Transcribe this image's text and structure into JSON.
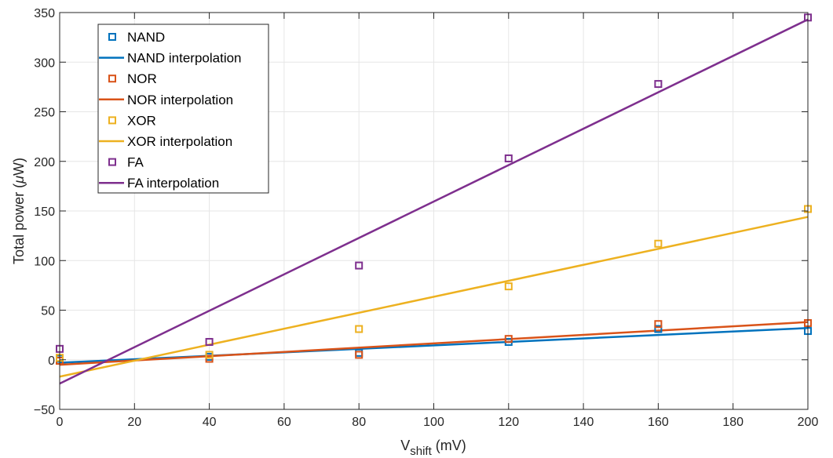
{
  "chart_data": {
    "type": "scatter",
    "xlabel": "V",
    "xlabel_sub": "shift",
    "xlabel_unit": " (mV)",
    "ylabel": "Total power (",
    "ylabel_mu": "μ",
    "ylabel_unit": "W)",
    "xlim": [
      0,
      200
    ],
    "ylim": [
      -50,
      350
    ],
    "xticks": [
      0,
      20,
      40,
      60,
      80,
      100,
      120,
      140,
      160,
      180,
      200
    ],
    "yticks": [
      -50,
      0,
      50,
      100,
      150,
      200,
      250,
      300,
      350
    ],
    "xtick_labels": [
      "0",
      "20",
      "40",
      "60",
      "80",
      "100",
      "120",
      "140",
      "160",
      "180",
      "200"
    ],
    "ytick_labels": [
      "−50",
      "0",
      "50",
      "100",
      "150",
      "200",
      "250",
      "300",
      "350"
    ],
    "grid": true,
    "legend_position": "top-left",
    "x": [
      0,
      40,
      80,
      120,
      160,
      200
    ],
    "series": [
      {
        "name": "NAND",
        "color": "#0072BD",
        "values": [
          1,
          3,
          7,
          18,
          31,
          29
        ]
      },
      {
        "name": "NOR",
        "color": "#D95319",
        "values": [
          -1,
          1,
          5,
          21,
          36,
          37
        ]
      },
      {
        "name": "XOR",
        "color": "#EDB120",
        "values": [
          2,
          5,
          31,
          74,
          117,
          152
        ]
      },
      {
        "name": "FA",
        "color": "#7E2F8E",
        "values": [
          11,
          18,
          95,
          203,
          278,
          345
        ]
      }
    ],
    "interpolations": [
      {
        "name": "NAND interpolation",
        "color": "#0072BD",
        "y_start": -3,
        "y_end": 32
      },
      {
        "name": "NOR interpolation",
        "color": "#D95319",
        "y_start": -5,
        "y_end": 38
      },
      {
        "name": "XOR interpolation",
        "color": "#EDB120",
        "y_start": -17,
        "y_end": 144
      },
      {
        "name": "FA interpolation",
        "color": "#7E2F8E",
        "y_start": -24,
        "y_end": 343
      }
    ],
    "legend": [
      {
        "label": "NAND",
        "kind": "marker",
        "color": "#0072BD"
      },
      {
        "label": "NAND interpolation",
        "kind": "line",
        "color": "#0072BD"
      },
      {
        "label": "NOR",
        "kind": "marker",
        "color": "#D95319"
      },
      {
        "label": "NOR interpolation",
        "kind": "line",
        "color": "#D95319"
      },
      {
        "label": "XOR",
        "kind": "marker",
        "color": "#EDB120"
      },
      {
        "label": "XOR interpolation",
        "kind": "line",
        "color": "#EDB120"
      },
      {
        "label": "FA",
        "kind": "marker",
        "color": "#7E2F8E"
      },
      {
        "label": "FA interpolation",
        "kind": "line",
        "color": "#7E2F8E"
      }
    ]
  }
}
